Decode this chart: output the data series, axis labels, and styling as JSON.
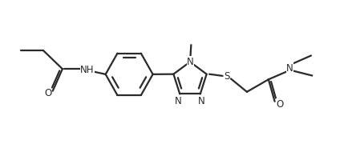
{
  "bg_color": "#ffffff",
  "line_color": "#2a2a2a",
  "bond_width": 1.6,
  "xlim": [
    0,
    10
  ],
  "ylim": [
    0,
    4.5
  ],
  "figsize": [
    4.35,
    2.01
  ],
  "dpi": 100
}
